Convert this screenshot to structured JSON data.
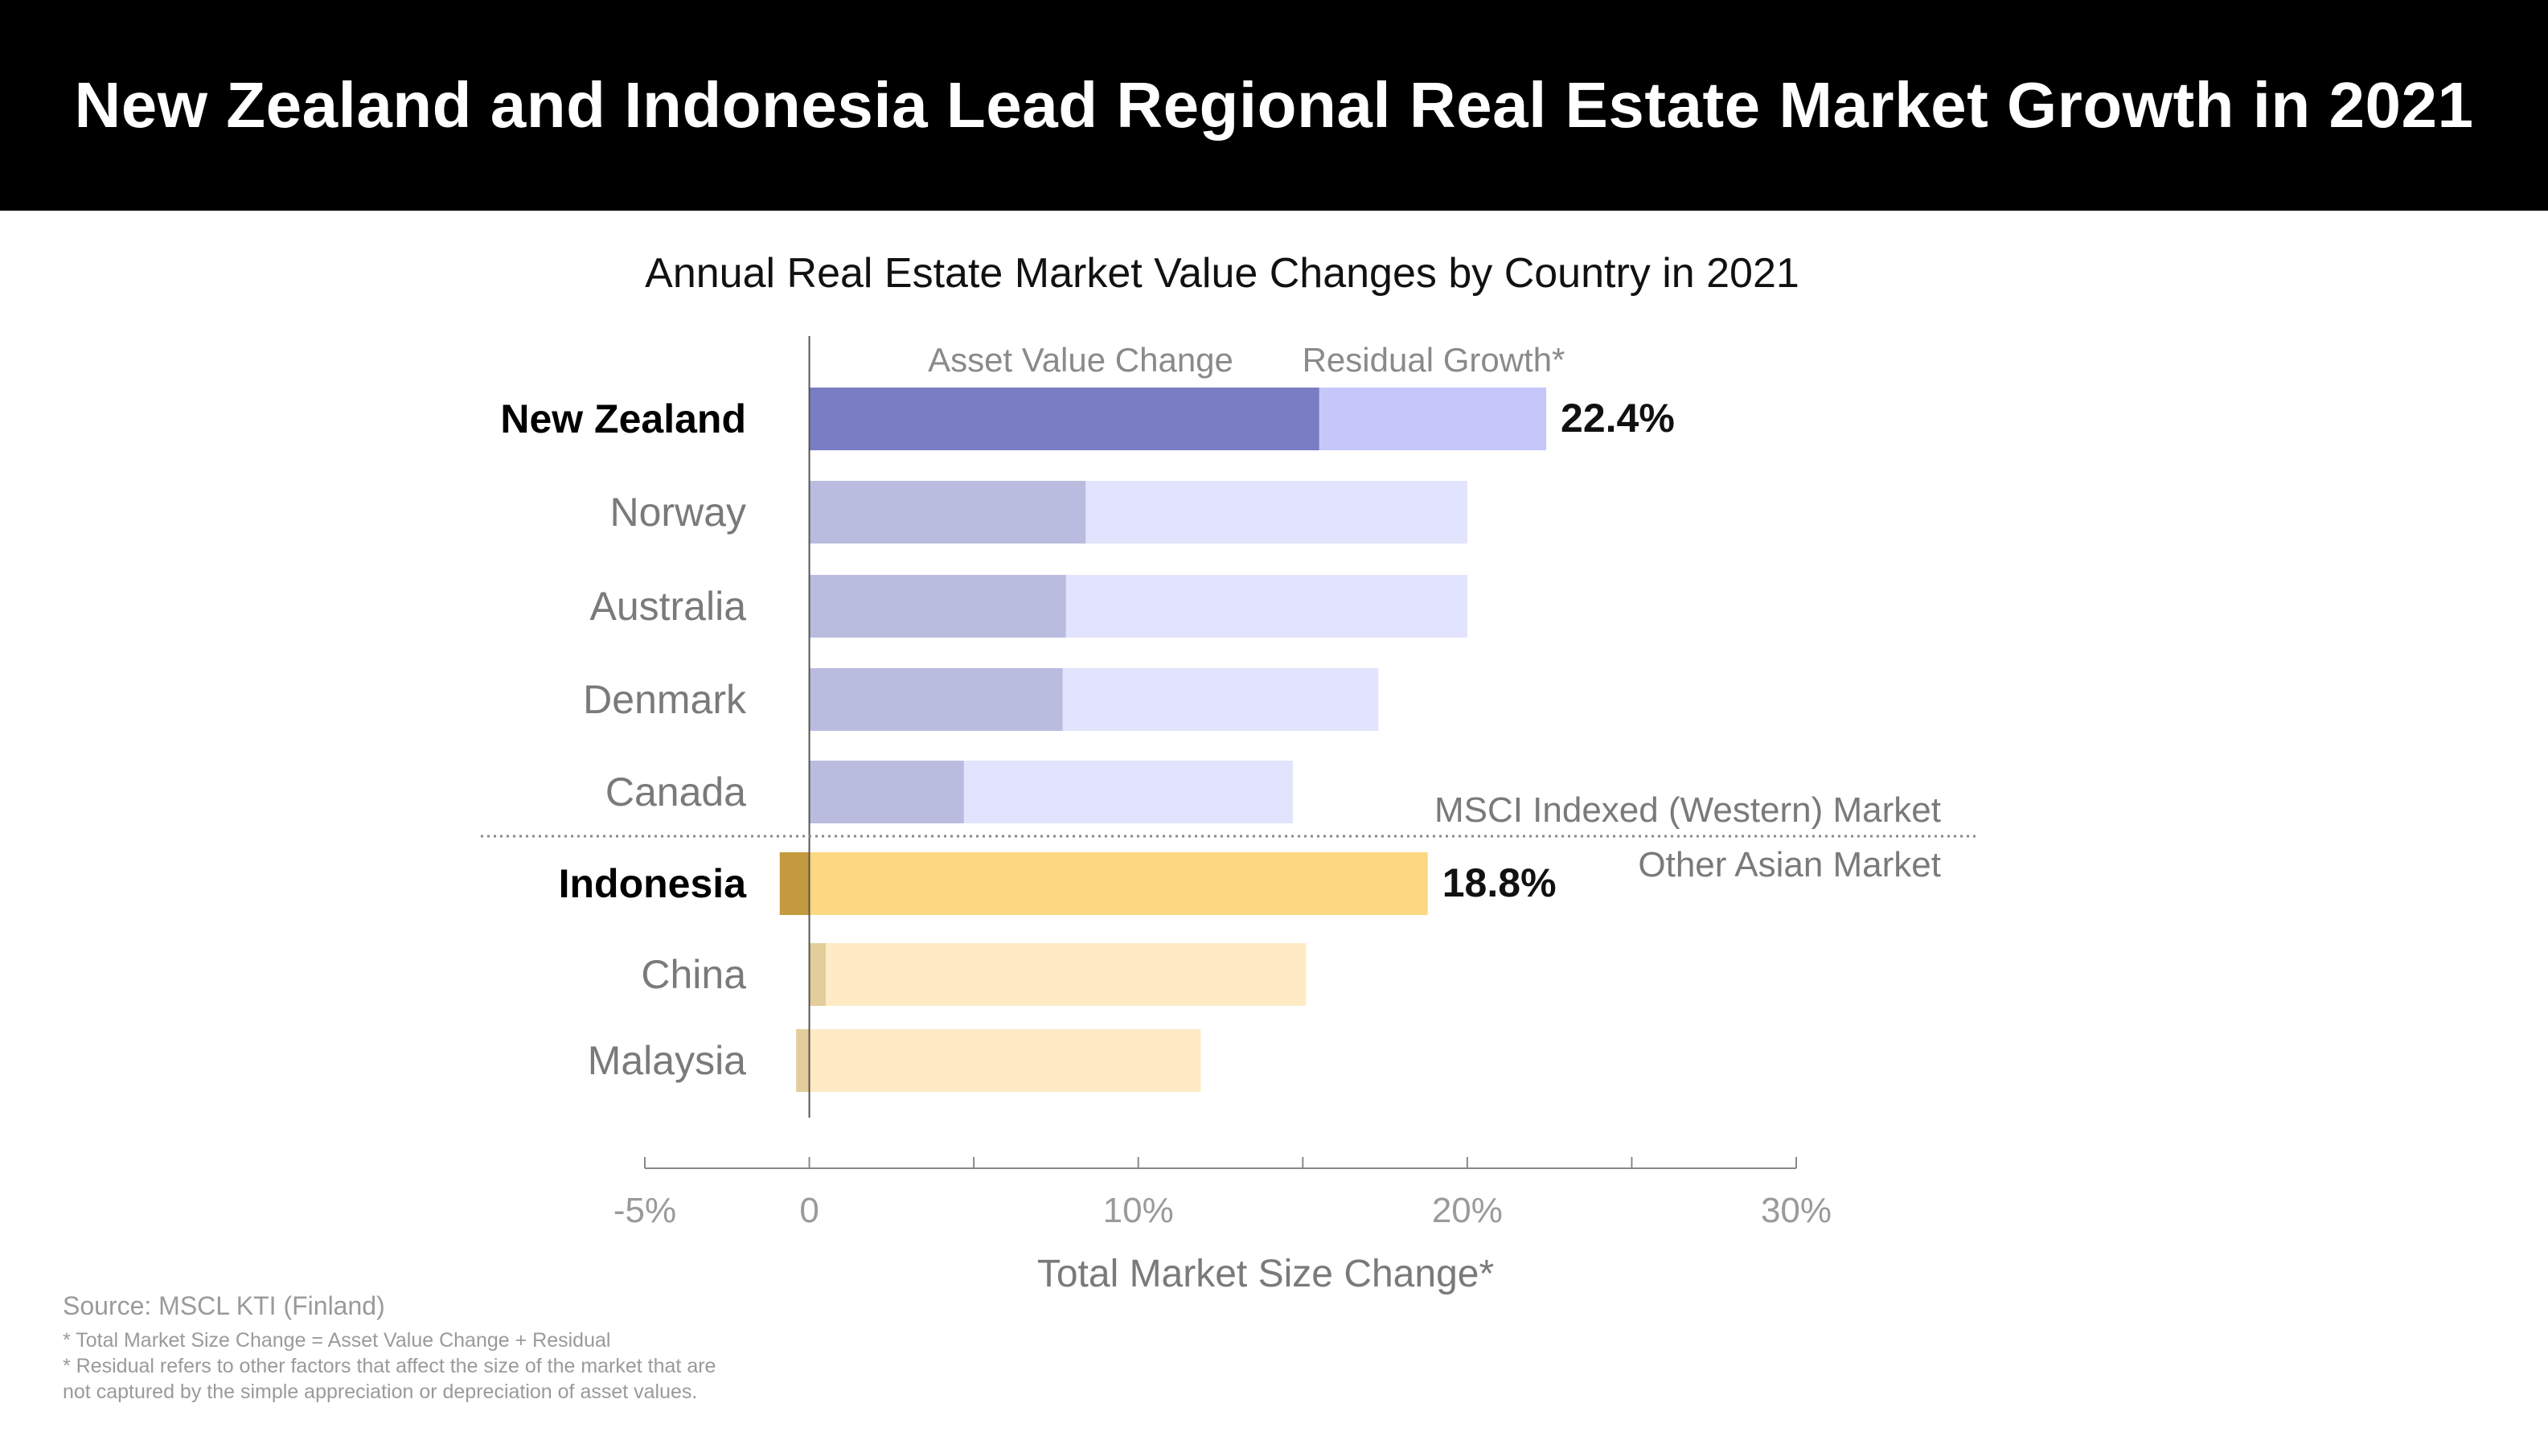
{
  "header": {
    "title": "New Zealand and Indonesia Lead Regional Real Estate Market Growth in 2021"
  },
  "colors": {
    "asset_highlight": "#7a7dc3",
    "residual_highlight": "#c5c7fa",
    "asset_muted": "#babcdf",
    "residual_muted": "#e2e3fc",
    "asian_highlight": "#fdd882",
    "asian_asset_highlight": "#c39a3e",
    "asian_muted": "#feebc6",
    "asian_asset_muted": "#e3cd9a",
    "label_highlight": "#000000",
    "label_muted": "#7a7a7a"
  },
  "chart_data": {
    "type": "bar",
    "orientation": "horizontal",
    "stacked": true,
    "title": "Annual Real Estate Market Value Changes by Country in 2021",
    "xlabel": "Total Market Size Change*",
    "ylabel": "",
    "xlim": [
      -5,
      30
    ],
    "x_ticks": [
      -5,
      0,
      5,
      10,
      15,
      20,
      25,
      30
    ],
    "x_tick_labels": [
      "-5%",
      "0",
      "",
      "10%",
      "",
      "20%",
      "",
      "30%"
    ],
    "legend": [
      "Asset Value Change",
      "Residual Growth*"
    ],
    "categories": [
      "New Zealand",
      "Norway",
      "Australia",
      "Denmark",
      "Canada",
      "Indonesia",
      "China",
      "Malaysia"
    ],
    "groups": [
      "western",
      "western",
      "western",
      "western",
      "western",
      "asian",
      "asian",
      "asian"
    ],
    "highlighted": [
      true,
      false,
      false,
      false,
      false,
      true,
      false,
      false
    ],
    "series": [
      {
        "name": "Asset Value Change",
        "values": [
          15.5,
          8.4,
          7.8,
          7.7,
          4.7,
          -0.9,
          0.5,
          -0.4
        ]
      },
      {
        "name": "Residual Growth*",
        "values": [
          6.9,
          11.6,
          12.2,
          9.6,
          10.0,
          19.7,
          14.6,
          12.3
        ]
      }
    ],
    "totals": [
      22.4,
      20.0,
      20.0,
      17.3,
      14.7,
      18.8,
      15.1,
      11.9
    ],
    "data_labels": [
      "22.4%",
      "",
      "",
      "",
      "",
      "18.8%",
      "",
      ""
    ],
    "group_labels": {
      "western": "MSCI Indexed (Western) Market",
      "asian": "Other Asian Market"
    }
  },
  "footer": {
    "source": "Source: MSCL KTI (Finland)",
    "notes": [
      "* Total Market Size Change = Asset Value Change + Residual",
      "* Residual refers to other factors that affect the size of the market that are",
      "not captured by the simple appreciation or depreciation of asset values."
    ]
  }
}
